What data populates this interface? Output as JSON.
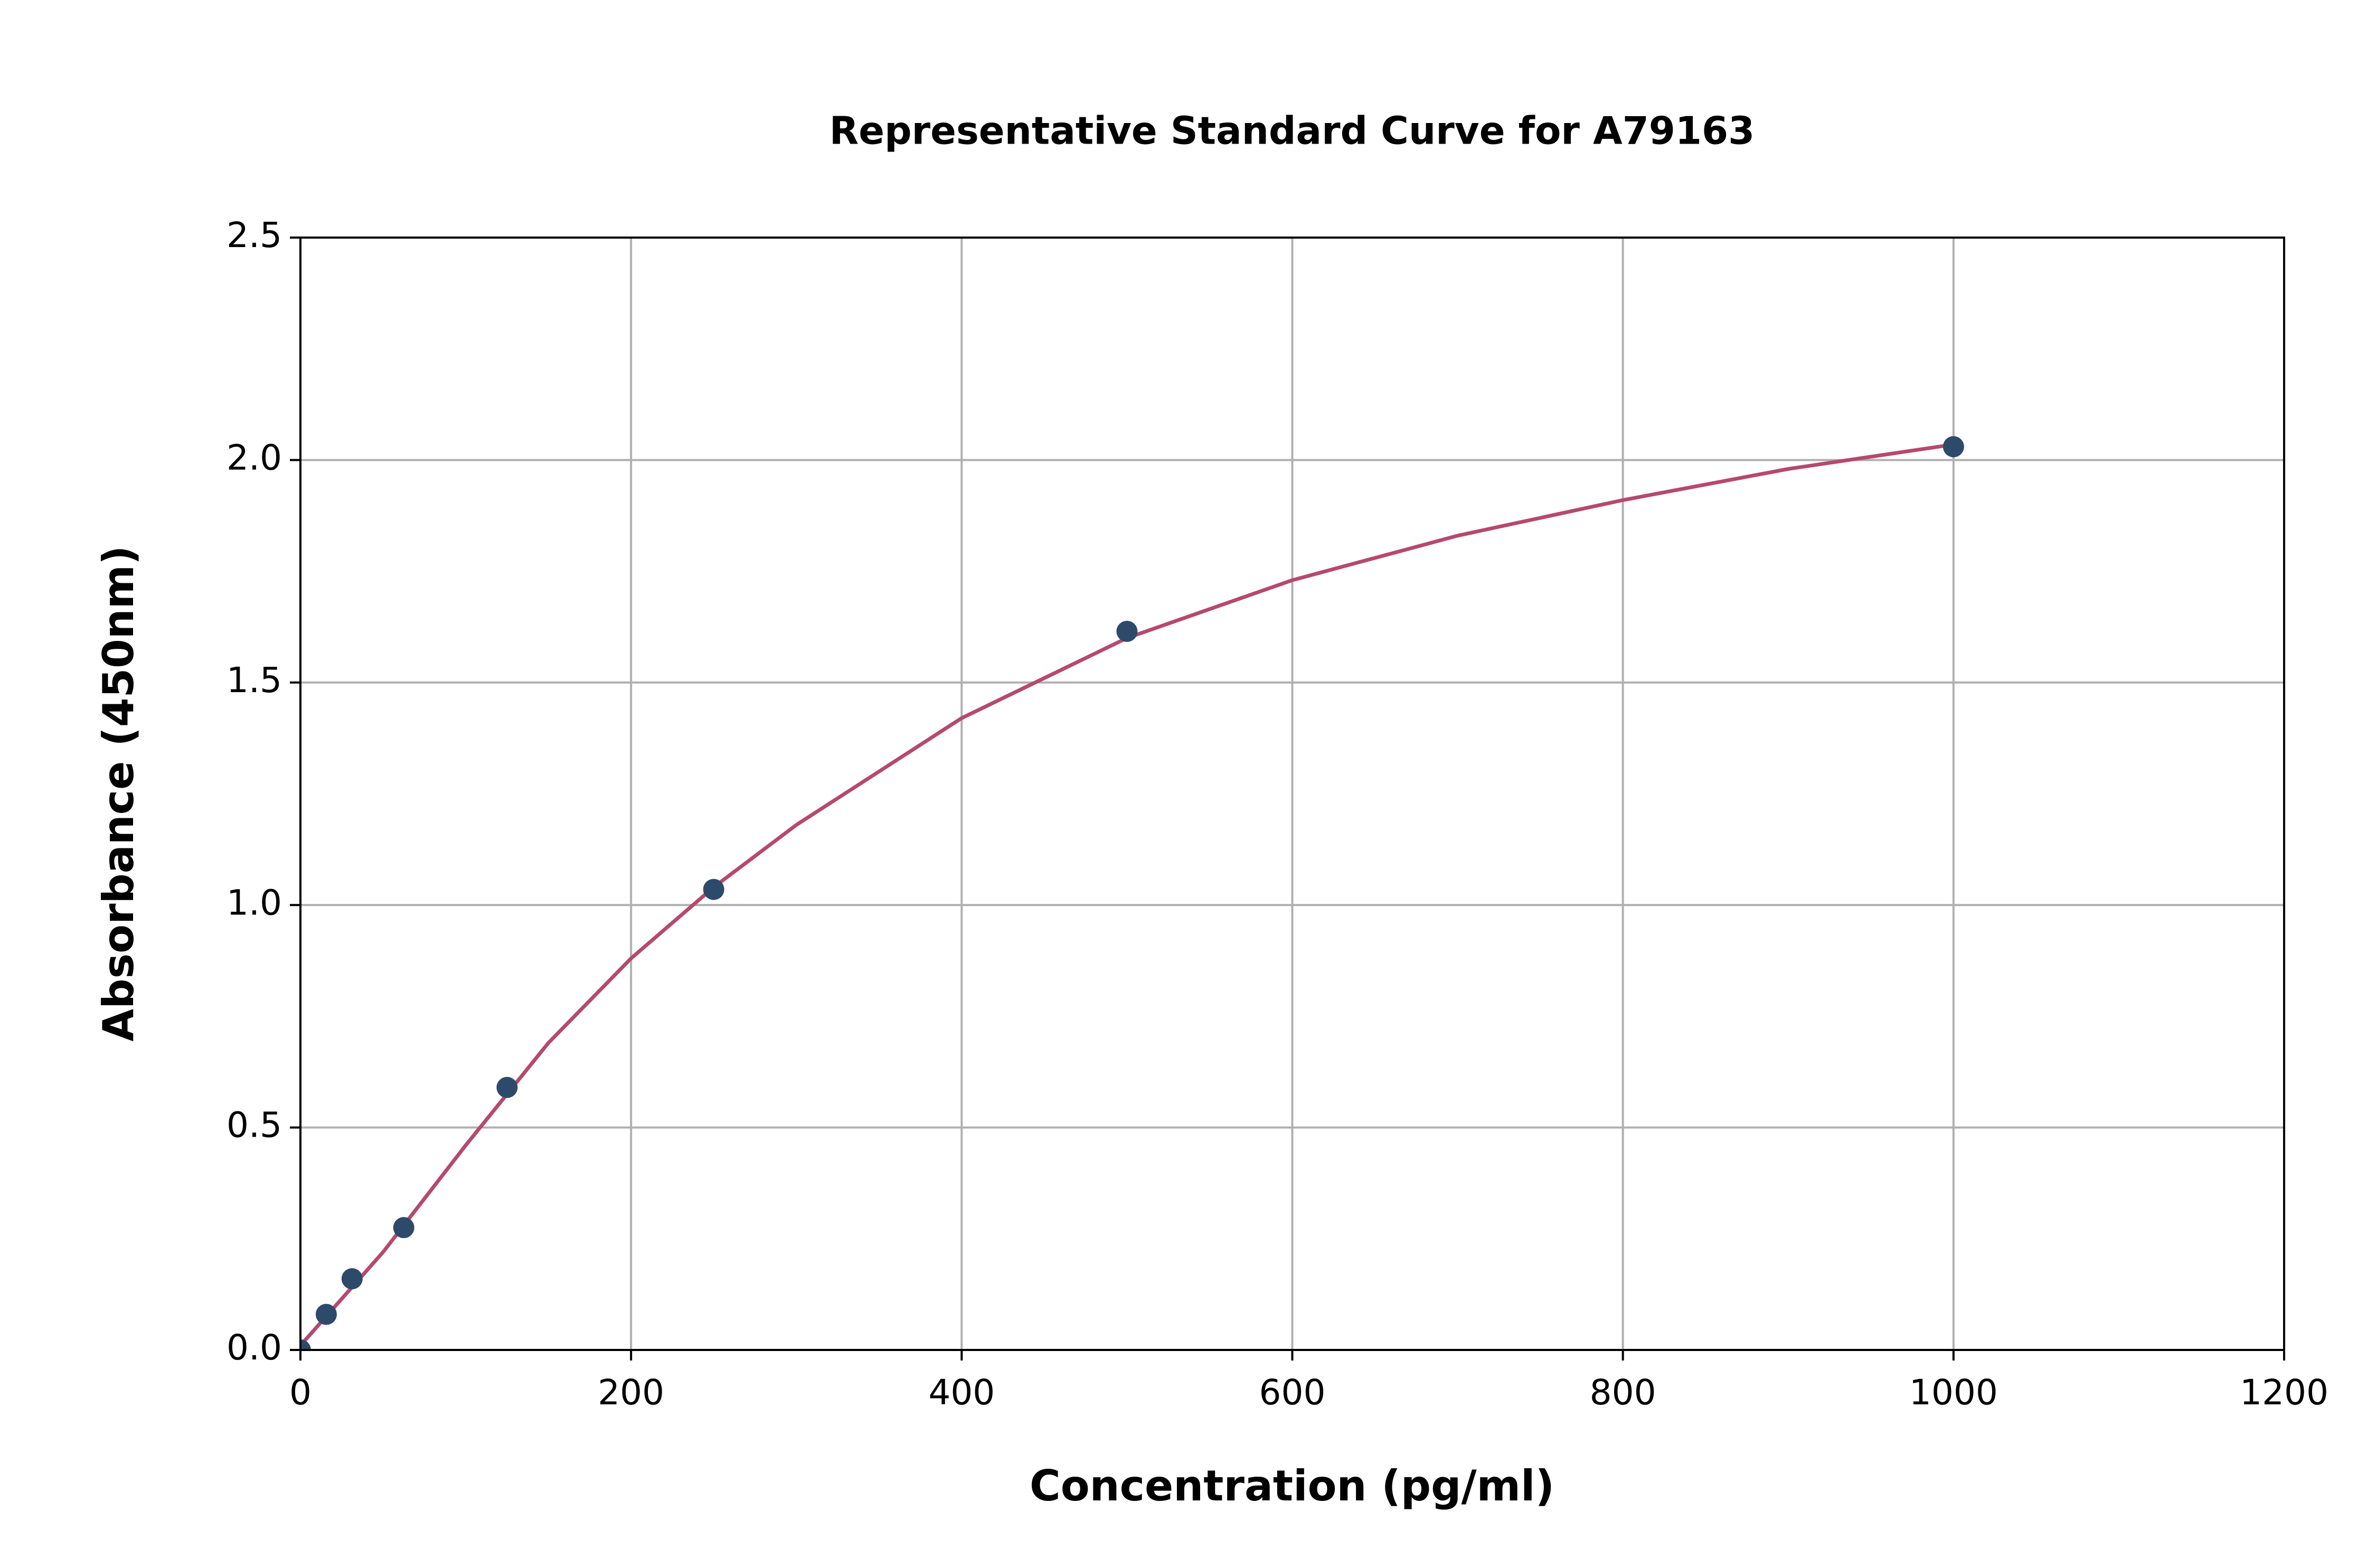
{
  "chart_data": {
    "type": "scatter",
    "title": "Representative Standard Curve for A79163",
    "x_label": "Concentration (pg/ml)",
    "y_label": "Absorbance (450nm)",
    "xlim": [
      0,
      1200
    ],
    "xticks": [
      0,
      200,
      400,
      600,
      800,
      1000,
      1200
    ],
    "ylim": [
      0,
      2.5
    ],
    "yticks": [
      {
        "value": 0,
        "label": "0.0"
      },
      0.5,
      {
        "value": 1,
        "label": "1.0"
      },
      1.5,
      {
        "value": 2,
        "label": "2.0"
      },
      2.5
    ],
    "grid": true,
    "series": [
      {
        "type": "line",
        "color": "#b5496e",
        "x": [
          0,
          50,
          100,
          150,
          200,
          250,
          300,
          400,
          500,
          600,
          700,
          800,
          900,
          1000
        ],
        "values": [
          0.01,
          0.22,
          0.46,
          0.69,
          0.88,
          1.04,
          1.18,
          1.42,
          1.6,
          1.73,
          1.83,
          1.91,
          1.98,
          2.035
        ]
      },
      {
        "type": "scatter",
        "color": "#2e4a6b",
        "x": [
          0,
          15.625,
          31.25,
          62.5,
          125,
          250,
          500,
          1000
        ],
        "values": [
          0.0,
          0.08,
          0.16,
          0.275,
          0.59,
          1.035,
          1.615,
          2.03
        ]
      }
    ]
  }
}
